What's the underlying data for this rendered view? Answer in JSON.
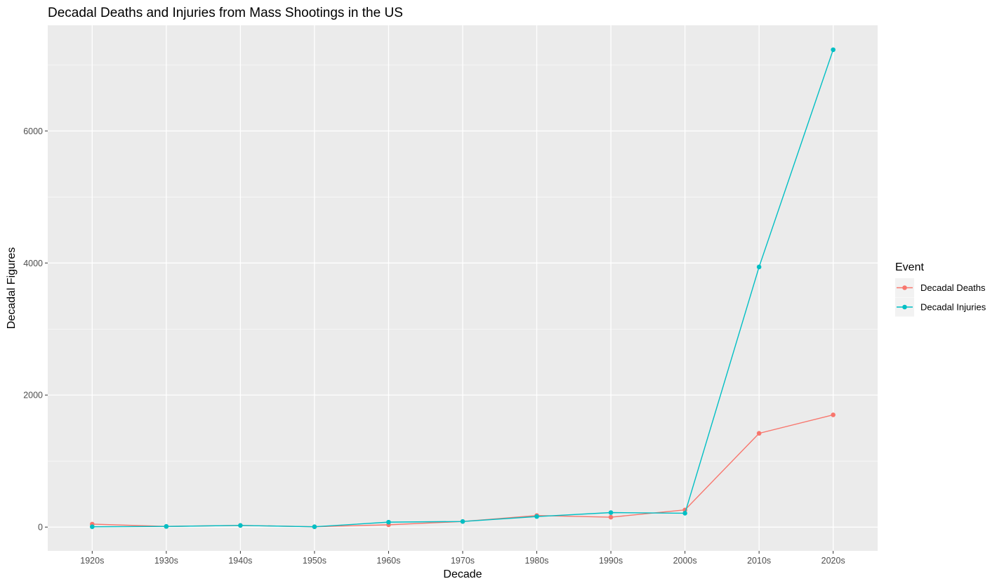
{
  "chart_data": {
    "type": "line",
    "title": "Decadal Deaths and Injuries from Mass Shootings in the US",
    "xlabel": "Decade",
    "ylabel": "Decadal Figures",
    "categories": [
      "1920s",
      "1930s",
      "1940s",
      "1950s",
      "1960s",
      "1970s",
      "1980s",
      "1990s",
      "2000s",
      "2010s",
      "2020s"
    ],
    "ylim": [
      -360,
      7600
    ],
    "yticks": [
      0,
      2000,
      4000,
      6000
    ],
    "grid": true,
    "legend": {
      "title": "Event",
      "position": "right"
    },
    "series": [
      {
        "name": "Decadal Deaths",
        "color": "#F8766D",
        "values": [
          45,
          10,
          25,
          5,
          35,
          85,
          175,
          150,
          260,
          1420,
          1700
        ]
      },
      {
        "name": "Decadal Injuries",
        "color": "#00BFC4",
        "values": [
          5,
          10,
          25,
          5,
          75,
          85,
          160,
          220,
          210,
          3940,
          7230
        ]
      }
    ]
  }
}
